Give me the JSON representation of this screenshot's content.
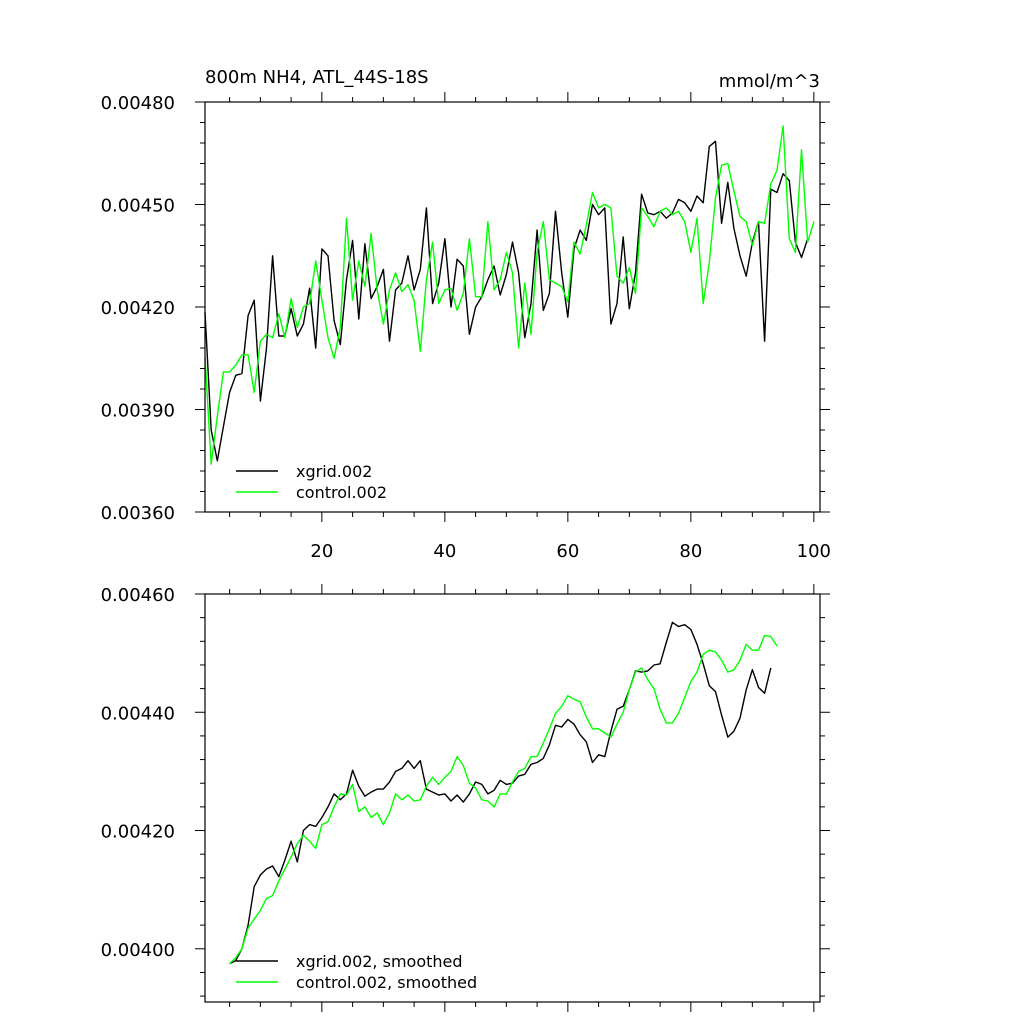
{
  "chart_data": [
    {
      "type": "line",
      "title": "800m NH4, ATL_44S-18S",
      "units": "mmol/m^3",
      "xlabel": "",
      "ylabel": "",
      "xlim": [
        1,
        101
      ],
      "ylim": [
        0.0036,
        0.0048
      ],
      "xticks": [
        "20",
        "40",
        "60",
        "80",
        "100"
      ],
      "yticks": [
        "0.00360",
        "0.00390",
        "0.00420",
        "0.00450",
        "0.00480"
      ],
      "legend_position": "bottom-left",
      "series": [
        {
          "name": "xgrid.002",
          "color": "#000000",
          "x_start": 1,
          "values": [
            0.004185,
            0.00384,
            0.00375,
            0.00385,
            0.00395,
            0.004,
            0.004005,
            0.004175,
            0.00422,
            0.003925,
            0.00408,
            0.00435,
            0.004115,
            0.004115,
            0.004195,
            0.004115,
            0.00415,
            0.004255,
            0.00408,
            0.00437,
            0.00435,
            0.00416,
            0.00409,
            0.00428,
            0.004395,
            0.004165,
            0.004385,
            0.004225,
            0.00426,
            0.00431,
            0.0041,
            0.00425,
            0.00427,
            0.00435,
            0.00425,
            0.00431,
            0.00449,
            0.00421,
            0.00427,
            0.0044,
            0.0042,
            0.00434,
            0.00432,
            0.00412,
            0.0042,
            0.00423,
            0.00428,
            0.00432,
            0.004235,
            0.004295,
            0.00439,
            0.0043,
            0.00411,
            0.00421,
            0.004425,
            0.00419,
            0.00424,
            0.00448,
            0.0043,
            0.00417,
            0.00437,
            0.004425,
            0.004395,
            0.0045,
            0.00447,
            0.00449,
            0.00415,
            0.00421,
            0.004405,
            0.004195,
            0.0043,
            0.00453,
            0.004475,
            0.00447,
            0.00448,
            0.00446,
            0.004475,
            0.004515,
            0.004505,
            0.00448,
            0.004525,
            0.004505,
            0.00467,
            0.004685,
            0.004445,
            0.004565,
            0.00443,
            0.00435,
            0.00429,
            0.00439,
            0.00445,
            0.0041,
            0.004545,
            0.004535,
            0.00459,
            0.00457,
            0.00439,
            0.004345,
            0.0044
          ]
        },
        {
          "name": "control.002",
          "color": "#00ff00",
          "x_start": 1,
          "values": [
            0.004055,
            0.00374,
            0.00388,
            0.00401,
            0.00401,
            0.00403,
            0.00406,
            0.00406,
            0.00395,
            0.0041,
            0.00412,
            0.00411,
            0.00418,
            0.00411,
            0.004225,
            0.00414,
            0.0042,
            0.00421,
            0.004335,
            0.00422,
            0.00411,
            0.00405,
            0.00414,
            0.00446,
            0.00422,
            0.004335,
            0.00426,
            0.004415,
            0.00425,
            0.00415,
            0.00425,
            0.0043,
            0.004245,
            0.004265,
            0.00422,
            0.00407,
            0.00428,
            0.00439,
            0.00421,
            0.00425,
            0.004255,
            0.00419,
            0.00424,
            0.0044,
            0.00423,
            0.00423,
            0.00445,
            0.00425,
            0.00428,
            0.00436,
            0.0043,
            0.00408,
            0.00427,
            0.00412,
            0.00436,
            0.00445,
            0.00428,
            0.00427,
            0.00426,
            0.004215,
            0.00439,
            0.004355,
            0.00444,
            0.004535,
            0.00449,
            0.0045,
            0.00449,
            0.00429,
            0.00427,
            0.004315,
            0.00424,
            0.00449,
            0.004465,
            0.004435,
            0.00448,
            0.00449,
            0.00447,
            0.00448,
            0.00445,
            0.00436,
            0.00446,
            0.00421,
            0.00433,
            0.00452,
            0.004615,
            0.00462,
            0.00454,
            0.004465,
            0.00445,
            0.00438,
            0.00445,
            0.004445,
            0.00456,
            0.0046,
            0.00473,
            0.0044,
            0.00436,
            0.00466,
            0.00439,
            0.00445
          ]
        }
      ]
    },
    {
      "type": "line",
      "title": "",
      "xlabel": "",
      "ylabel": "",
      "xlim": [
        1,
        101
      ],
      "ylim": [
        0.00391,
        0.0046
      ],
      "yticks": [
        "0.00400",
        "0.00420",
        "0.00440",
        "0.00460"
      ],
      "legend_position": "bottom-left",
      "series": [
        {
          "name": "xgrid.002, smoothed",
          "color": "#000000",
          "x_start": 5,
          "values": [
            0.003975,
            0.00398,
            0.004,
            0.00404,
            0.004105,
            0.004125,
            0.004135,
            0.00414,
            0.004122,
            0.00415,
            0.004182,
            0.004147,
            0.0042,
            0.00421,
            0.004207,
            0.004222,
            0.00424,
            0.004262,
            0.004252,
            0.004262,
            0.004302,
            0.004275,
            0.004258,
            0.004265,
            0.00427,
            0.00427,
            0.004282,
            0.0043,
            0.004305,
            0.004318,
            0.004305,
            0.004318,
            0.00427,
            0.004265,
            0.00426,
            0.004262,
            0.00425,
            0.00426,
            0.004248,
            0.004262,
            0.004282,
            0.004278,
            0.004262,
            0.004268,
            0.004285,
            0.004278,
            0.00428,
            0.004292,
            0.004295,
            0.004312,
            0.004315,
            0.004322,
            0.004345,
            0.004378,
            0.004375,
            0.004388,
            0.00438,
            0.004362,
            0.00435,
            0.004315,
            0.004328,
            0.004325,
            0.004368,
            0.004405,
            0.00441,
            0.004438,
            0.00447,
            0.004468,
            0.00447,
            0.00448,
            0.004482,
            0.004518,
            0.004552,
            0.004545,
            0.004548,
            0.00454,
            0.004515,
            0.004482,
            0.004445,
            0.004435,
            0.004395,
            0.004358,
            0.004368,
            0.00439,
            0.004438,
            0.004472,
            0.004442,
            0.004432,
            0.004475
          ]
        },
        {
          "name": "control.002, smoothed",
          "color": "#00ff00",
          "x_start": 5,
          "values": [
            0.003975,
            0.003985,
            0.004,
            0.004035,
            0.00405,
            0.004065,
            0.004085,
            0.00409,
            0.004115,
            0.004135,
            0.004155,
            0.004178,
            0.004192,
            0.004182,
            0.00417,
            0.00421,
            0.004215,
            0.00424,
            0.004262,
            0.00426,
            0.004278,
            0.004232,
            0.00424,
            0.004222,
            0.00423,
            0.00421,
            0.00423,
            0.004262,
            0.004252,
            0.00426,
            0.00425,
            0.004252,
            0.004275,
            0.00429,
            0.004278,
            0.00429,
            0.0043,
            0.004325,
            0.00431,
            0.00428,
            0.004272,
            0.004252,
            0.00425,
            0.00424,
            0.004262,
            0.004262,
            0.004282,
            0.0043,
            0.004305,
            0.004325,
            0.004325,
            0.004348,
            0.004372,
            0.004398,
            0.00441,
            0.004428,
            0.004422,
            0.004418,
            0.004392,
            0.004372,
            0.004372,
            0.004365,
            0.004358,
            0.00438,
            0.0044,
            0.004438,
            0.004468,
            0.004475,
            0.004455,
            0.00444,
            0.004405,
            0.004382,
            0.004382,
            0.004398,
            0.004425,
            0.004452,
            0.004468,
            0.004498,
            0.004505,
            0.004502,
            0.004488,
            0.004468,
            0.004472,
            0.004488,
            0.004515,
            0.004505,
            0.004505,
            0.00453,
            0.004528,
            0.004512
          ]
        }
      ]
    }
  ]
}
